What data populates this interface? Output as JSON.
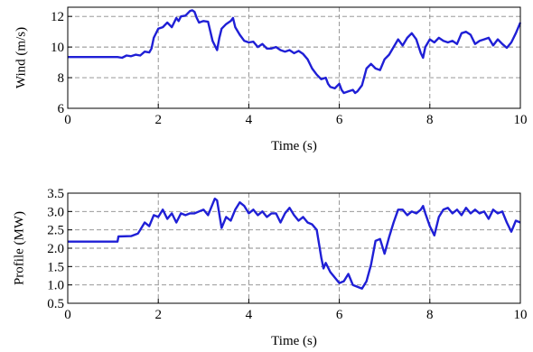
{
  "chart_data": [
    {
      "type": "line",
      "xlabel": "Time (s)",
      "ylabel": "Wind (m/s)",
      "xlim": [
        0,
        10
      ],
      "ylim": [
        6,
        12.6
      ],
      "xticks": [
        "0",
        "2",
        "4",
        "6",
        "8",
        "10"
      ],
      "xtick_values": [
        0,
        2,
        4,
        6,
        8,
        10
      ],
      "yticks": [
        "6",
        "8",
        "10",
        "12"
      ],
      "ytick_values": [
        6,
        8,
        10,
        12
      ],
      "grid": true,
      "color": "#1f1fd6",
      "series": [
        {
          "x": [
            0,
            0.3,
            0.6,
            0.9,
            1.1,
            1.2,
            1.3,
            1.4,
            1.5,
            1.6,
            1.7,
            1.8,
            1.85,
            1.9,
            2.0,
            2.1,
            2.2,
            2.3,
            2.4,
            2.45,
            2.5,
            2.6,
            2.7,
            2.75,
            2.8,
            2.85,
            2.9,
            3.0,
            3.1,
            3.2,
            3.3,
            3.35,
            3.4,
            3.5,
            3.6,
            3.65,
            3.7,
            3.8,
            3.9,
            4.0,
            4.1,
            4.2,
            4.3,
            4.4,
            4.5,
            4.6,
            4.7,
            4.8,
            4.9,
            5.0,
            5.1,
            5.2,
            5.3,
            5.4,
            5.5,
            5.6,
            5.7,
            5.75,
            5.8,
            5.9,
            6.0,
            6.05,
            6.1,
            6.2,
            6.3,
            6.35,
            6.4,
            6.5,
            6.6,
            6.7,
            6.8,
            6.9,
            7.0,
            7.1,
            7.2,
            7.3,
            7.4,
            7.5,
            7.6,
            7.7,
            7.8,
            7.85,
            7.9,
            8.0,
            8.1,
            8.2,
            8.3,
            8.4,
            8.5,
            8.6,
            8.7,
            8.8,
            8.9,
            9.0,
            9.1,
            9.2,
            9.3,
            9.4,
            9.5,
            9.6,
            9.7,
            9.8,
            9.9,
            10.0
          ],
          "y": [
            9.35,
            9.35,
            9.35,
            9.35,
            9.35,
            9.3,
            9.45,
            9.4,
            9.5,
            9.45,
            9.7,
            9.65,
            9.9,
            10.6,
            11.2,
            11.3,
            11.6,
            11.3,
            11.9,
            11.7,
            12.0,
            12.05,
            12.35,
            12.4,
            12.3,
            11.9,
            11.6,
            11.7,
            11.65,
            10.4,
            9.8,
            10.6,
            11.2,
            11.5,
            11.7,
            11.9,
            11.3,
            10.8,
            10.4,
            10.3,
            10.35,
            10.0,
            10.2,
            9.9,
            9.9,
            10.0,
            9.8,
            9.7,
            9.8,
            9.6,
            9.75,
            9.55,
            9.2,
            8.6,
            8.2,
            7.9,
            8.0,
            7.6,
            7.4,
            7.3,
            7.6,
            7.2,
            7.0,
            7.1,
            7.2,
            7.0,
            7.1,
            7.5,
            8.6,
            8.9,
            8.6,
            8.5,
            9.2,
            9.5,
            10.0,
            10.5,
            10.1,
            10.6,
            10.9,
            10.5,
            9.6,
            9.3,
            10.0,
            10.5,
            10.3,
            10.6,
            10.4,
            10.3,
            10.4,
            10.2,
            10.9,
            11.0,
            10.8,
            10.2,
            10.4,
            10.5,
            10.6,
            10.1,
            10.5,
            10.2,
            9.95,
            10.3,
            10.9,
            11.6
          ]
        }
      ]
    },
    {
      "type": "line",
      "xlabel": "Time (s)",
      "ylabel": "Profile (MW)",
      "xlim": [
        0,
        10
      ],
      "ylim": [
        0.5,
        3.5
      ],
      "xticks": [
        "0",
        "2",
        "4",
        "6",
        "8",
        "10"
      ],
      "xtick_values": [
        0,
        2,
        4,
        6,
        8,
        10
      ],
      "yticks": [
        "0.5",
        "1.0",
        "1.5",
        "2.0",
        "2.5",
        "3.0",
        "3.5"
      ],
      "ytick_values": [
        0.5,
        1.0,
        1.5,
        2.0,
        2.5,
        3.0,
        3.5
      ],
      "grid": true,
      "color": "#1f1fd6",
      "series": [
        {
          "x": [
            0,
            0.4,
            0.8,
            1.1,
            1.12,
            1.4,
            1.55,
            1.6,
            1.7,
            1.8,
            1.9,
            2.0,
            2.1,
            2.2,
            2.3,
            2.4,
            2.5,
            2.6,
            2.7,
            2.8,
            2.9,
            3.0,
            3.1,
            3.2,
            3.25,
            3.3,
            3.4,
            3.5,
            3.6,
            3.7,
            3.8,
            3.9,
            4.0,
            4.1,
            4.2,
            4.3,
            4.4,
            4.5,
            4.6,
            4.7,
            4.8,
            4.9,
            5.0,
            5.1,
            5.2,
            5.3,
            5.4,
            5.5,
            5.6,
            5.65,
            5.7,
            5.8,
            5.9,
            6.0,
            6.1,
            6.2,
            6.3,
            6.4,
            6.5,
            6.6,
            6.7,
            6.8,
            6.9,
            7.0,
            7.1,
            7.2,
            7.3,
            7.4,
            7.5,
            7.6,
            7.7,
            7.8,
            7.85,
            7.9,
            8.0,
            8.1,
            8.2,
            8.3,
            8.4,
            8.5,
            8.6,
            8.7,
            8.8,
            8.9,
            9.0,
            9.1,
            9.2,
            9.3,
            9.4,
            9.5,
            9.6,
            9.7,
            9.8,
            9.9,
            10.0
          ],
          "y": [
            2.18,
            2.18,
            2.18,
            2.18,
            2.32,
            2.33,
            2.4,
            2.5,
            2.7,
            2.6,
            2.9,
            2.85,
            3.05,
            2.8,
            2.95,
            2.7,
            2.95,
            2.9,
            2.95,
            2.95,
            3.0,
            3.05,
            2.9,
            3.2,
            3.35,
            3.3,
            2.55,
            2.85,
            2.75,
            3.05,
            3.25,
            3.15,
            2.95,
            3.05,
            2.9,
            3.0,
            2.85,
            2.95,
            2.95,
            2.7,
            2.95,
            3.1,
            2.9,
            2.75,
            2.85,
            2.7,
            2.65,
            2.5,
            1.75,
            1.45,
            1.6,
            1.35,
            1.2,
            1.05,
            1.1,
            1.3,
            1.0,
            0.95,
            0.9,
            1.1,
            1.55,
            2.2,
            2.25,
            1.85,
            2.3,
            2.7,
            3.05,
            3.05,
            2.9,
            3.0,
            2.95,
            3.05,
            3.15,
            2.95,
            2.6,
            2.35,
            2.85,
            3.05,
            3.1,
            2.95,
            3.05,
            2.9,
            3.1,
            2.95,
            3.05,
            2.95,
            3.0,
            2.8,
            3.05,
            2.95,
            3.0,
            2.7,
            2.45,
            2.75,
            2.7
          ]
        }
      ]
    }
  ]
}
